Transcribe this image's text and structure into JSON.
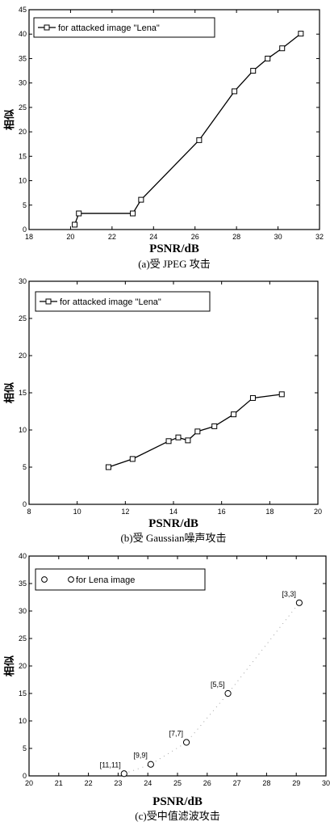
{
  "chart_data": [
    {
      "type": "line",
      "caption": "(a)受 JPEG 攻击",
      "xlabel": "PSNR/dB",
      "ylabel": "相似",
      "xlim": [
        18,
        32
      ],
      "ylim": [
        0,
        45
      ],
      "xticks": [
        18,
        20,
        22,
        24,
        26,
        28,
        30,
        32
      ],
      "yticks": [
        0,
        5,
        10,
        15,
        20,
        25,
        30,
        35,
        40,
        45
      ],
      "legend_position": "top-left",
      "series": [
        {
          "name": "for attacked image \"Lena\"",
          "marker": "square",
          "x": [
            20.2,
            20.4,
            23.0,
            23.4,
            26.2,
            27.9,
            28.8,
            29.5,
            30.2,
            31.1
          ],
          "y": [
            1.0,
            3.3,
            3.3,
            6.1,
            18.3,
            28.3,
            32.5,
            35.0,
            37.1,
            40.1
          ]
        }
      ]
    },
    {
      "type": "line",
      "caption": "(b)受 Gaussian噪声攻击",
      "xlabel": "PSNR/dB",
      "ylabel": "相似",
      "xlim": [
        8,
        20
      ],
      "ylim": [
        0,
        30
      ],
      "xticks": [
        8,
        10,
        12,
        14,
        16,
        18,
        20
      ],
      "yticks": [
        0,
        5,
        10,
        15,
        20,
        25,
        30
      ],
      "legend_position": "top-left",
      "series": [
        {
          "name": "for attacked image \"Lena\"",
          "marker": "square",
          "x": [
            11.3,
            12.3,
            13.8,
            14.2,
            14.6,
            15.0,
            15.7,
            16.5,
            17.3,
            18.5
          ],
          "y": [
            5.0,
            6.1,
            8.5,
            9.0,
            8.6,
            9.8,
            10.5,
            12.1,
            14.3,
            14.8
          ]
        }
      ]
    },
    {
      "type": "scatter",
      "caption": "(c)受中值滤波攻击",
      "xlabel": "PSNR/dB",
      "ylabel": "相似",
      "xlim": [
        20,
        30
      ],
      "ylim": [
        0,
        40
      ],
      "xticks": [
        20,
        21,
        22,
        23,
        24,
        25,
        26,
        27,
        28,
        29,
        30
      ],
      "yticks": [
        0,
        5,
        10,
        15,
        20,
        25,
        30,
        35,
        40
      ],
      "legend_position": "top-left",
      "series": [
        {
          "name": "for Lena image",
          "marker": "circle",
          "x": [
            23.2,
            24.1,
            25.3,
            26.7,
            29.1
          ],
          "y": [
            0.4,
            2.1,
            6.1,
            15.0,
            31.5
          ],
          "labels": [
            "[11,11]",
            "[9,9]",
            "[7,7]",
            "[5,5]",
            "[3,3]"
          ]
        }
      ]
    }
  ]
}
